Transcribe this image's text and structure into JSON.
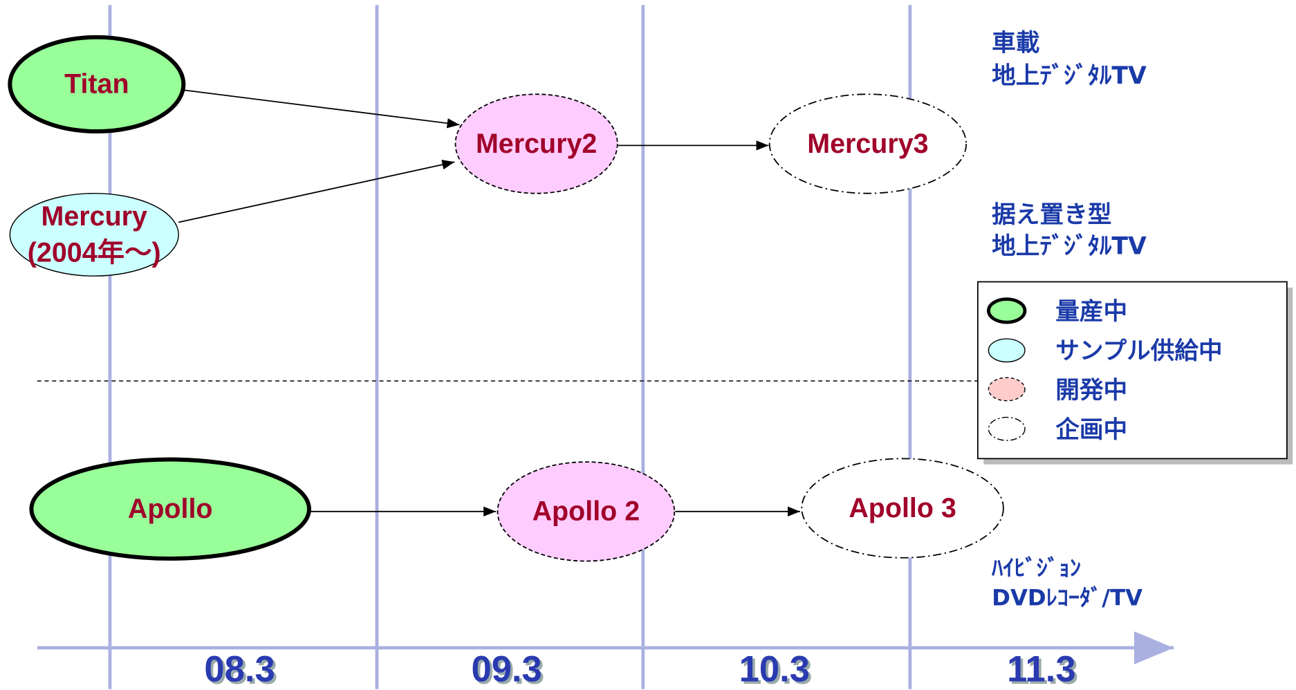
{
  "categories": [
    {
      "lines": [
        "車載",
        "地上ﾃﾞｼﾞﾀﾙTV"
      ]
    },
    {
      "lines": [
        "据え置き型",
        "地上ﾃﾞｼﾞﾀﾙTV"
      ]
    },
    {
      "lines": [
        "ﾊｲﾋﾞｼﾞｮﾝ",
        "DVDﾚｺｰﾀﾞ/TV"
      ]
    }
  ],
  "nodes": [
    {
      "lines": [
        "Titan"
      ]
    },
    {
      "lines": [
        "Mercury",
        "(2004年～)"
      ]
    },
    {
      "lines": [
        "Mercury2"
      ]
    },
    {
      "lines": [
        "Mercury3"
      ]
    },
    {
      "lines": [
        "Apollo"
      ]
    },
    {
      "lines": [
        "Apollo 2"
      ]
    },
    {
      "lines": [
        "Apollo 3"
      ]
    }
  ],
  "legend": [
    "量産中",
    "サンプル供給中",
    "開発中",
    "企画中"
  ],
  "timeline": [
    "08.3",
    "09.3",
    "10.3",
    "11.3"
  ]
}
